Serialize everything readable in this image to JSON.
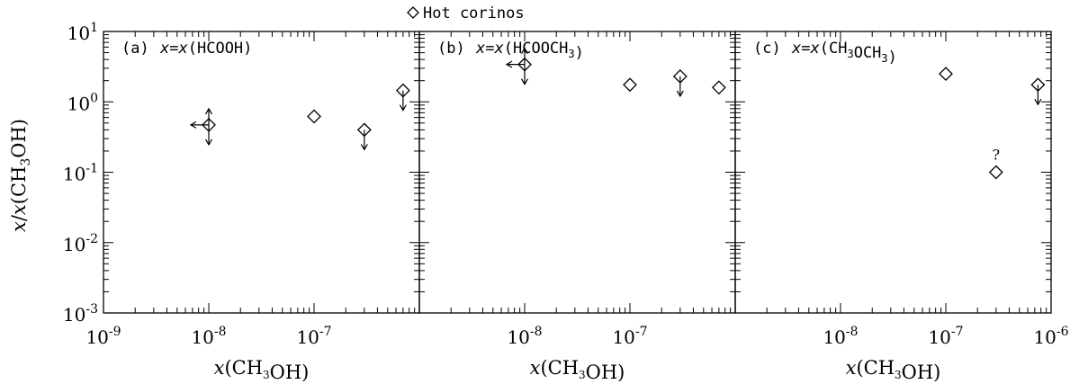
{
  "legend": {
    "marker": "diamond",
    "label": "Hot corinos"
  },
  "axes": {
    "xlabel": "x(CH3OH)",
    "ylabel": "x/x(CH3OH)"
  },
  "chart_data": [
    {
      "type": "scatter",
      "panel_label": "(a)",
      "title": "x=x(HCOOH)",
      "xlabel": "x(CH3OH)",
      "ylabel": "x/x(CH3OH)",
      "xscale": "log",
      "yscale": "log",
      "xlim": [
        1e-09,
        1e-06
      ],
      "ylim": [
        0.001,
        10.0
      ],
      "x_tick_labels": [
        "10^-9",
        "10^-8",
        "10^-7"
      ],
      "y_tick_labels": [
        "10^-3",
        "10^-2",
        "10^-1",
        "10^0",
        "10^1"
      ],
      "points": [
        {
          "x": 1e-08,
          "y": 0.47,
          "upper_limit_y": true,
          "upper_limit_x": true
        },
        {
          "x": 1e-07,
          "y": 0.62
        },
        {
          "x": 3e-07,
          "y": 0.4,
          "upper_limit_y": true
        },
        {
          "x": 7e-07,
          "y": 1.45,
          "upper_limit_y": true
        }
      ]
    },
    {
      "type": "scatter",
      "panel_label": "(b)",
      "title": "x=x(HCOOCH3)",
      "xlabel": "x(CH3OH)",
      "xscale": "log",
      "yscale": "log",
      "xlim": [
        1e-09,
        1e-06
      ],
      "ylim": [
        0.001,
        10.0
      ],
      "x_tick_labels": [
        "10^-8",
        "10^-7"
      ],
      "points": [
        {
          "x": 1e-08,
          "y": 3.4,
          "upper_limit_y": true,
          "upper_limit_x": true
        },
        {
          "x": 1e-07,
          "y": 1.75
        },
        {
          "x": 3e-07,
          "y": 2.3,
          "upper_limit_y": true
        },
        {
          "x": 7e-07,
          "y": 1.6
        }
      ]
    },
    {
      "type": "scatter",
      "panel_label": "(c)",
      "title": "x=x(CH3OCH3)",
      "xlabel": "x(CH3OH)",
      "xscale": "log",
      "yscale": "log",
      "xlim": [
        1e-09,
        1e-06
      ],
      "ylim": [
        0.001,
        10.0
      ],
      "x_tick_labels": [
        "10^-8",
        "10^-7",
        "10^-6"
      ],
      "points": [
        {
          "x": 1e-07,
          "y": 2.5
        },
        {
          "x": 3e-07,
          "y": 0.1,
          "annotation": "?"
        },
        {
          "x": 7.5e-07,
          "y": 1.75,
          "upper_limit_y": true
        }
      ]
    }
  ]
}
